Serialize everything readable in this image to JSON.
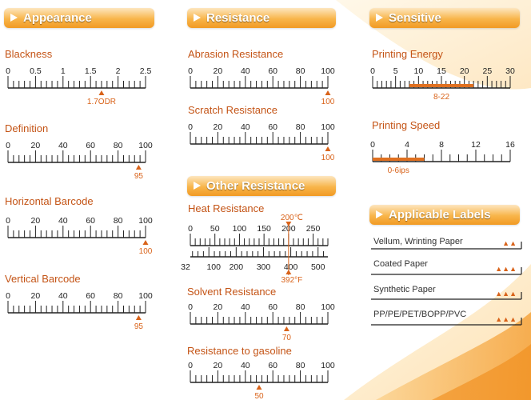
{
  "colors": {
    "accent": "#d9631a",
    "header": "#f5a733",
    "bar": "#e07020"
  },
  "sections": {
    "appearance": {
      "title": "Appearance"
    },
    "resistance": {
      "title": "Resistance"
    },
    "sensitive": {
      "title": "Sensitive"
    },
    "other": {
      "title": "Other Resistance"
    },
    "labels": {
      "title": "Applicable Labels"
    }
  },
  "metrics": {
    "blackness": {
      "label": "Blackness",
      "ticks": [
        "0",
        "0.5",
        "1",
        "1.5",
        "2",
        "2.5"
      ],
      "min": 0,
      "max": 2.5,
      "value": 1.7,
      "value_text": "1.7ODR"
    },
    "definition": {
      "label": "Definition",
      "ticks": [
        "0",
        "20",
        "40",
        "60",
        "80",
        "100"
      ],
      "min": 0,
      "max": 100,
      "value": 95,
      "value_text": "95"
    },
    "horizontal_barcode": {
      "label": "Horizontal Barcode",
      "ticks": [
        "0",
        "20",
        "40",
        "60",
        "80",
        "100"
      ],
      "min": 0,
      "max": 100,
      "value": 100,
      "value_text": "100"
    },
    "vertical_barcode": {
      "label": "Vertical Barcode",
      "ticks": [
        "0",
        "20",
        "40",
        "60",
        "80",
        "100"
      ],
      "min": 0,
      "max": 100,
      "value": 95,
      "value_text": "95"
    },
    "abrasion": {
      "label": "Abrasion Resistance",
      "ticks": [
        "0",
        "20",
        "40",
        "60",
        "80",
        "100"
      ],
      "min": 0,
      "max": 100,
      "value": 100,
      "value_text": "100"
    },
    "scratch": {
      "label": "Scratch Resistance",
      "ticks": [
        "0",
        "20",
        "40",
        "60",
        "80",
        "100"
      ],
      "min": 0,
      "max": 100,
      "value": 100,
      "value_text": "100"
    },
    "heat": {
      "label": "Heat Resistance",
      "top_ticks": [
        "0",
        "50",
        "100",
        "150",
        "200",
        "250"
      ],
      "bottom_ticks": [
        "32",
        "100",
        "200",
        "300",
        "400",
        "500"
      ],
      "value_c": "200℃",
      "value_f": "392°F",
      "value": 200
    },
    "solvent": {
      "label": "Solvent Resistance",
      "ticks": [
        "0",
        "20",
        "40",
        "60",
        "80",
        "100"
      ],
      "min": 0,
      "max": 100,
      "value": 70,
      "value_text": "70"
    },
    "gasoline": {
      "label": "Resistance to gasoline",
      "ticks": [
        "0",
        "20",
        "40",
        "60",
        "80",
        "100"
      ],
      "min": 0,
      "max": 100,
      "value": 50,
      "value_text": "50"
    },
    "printing_energy": {
      "label": "Printing Energy",
      "ticks": [
        "0",
        "5",
        "10",
        "15",
        "20",
        "25",
        "30"
      ],
      "min": 0,
      "max": 30,
      "range": [
        8,
        22
      ],
      "value_text": "8-22"
    },
    "printing_speed": {
      "label": "Printing Speed",
      "ticks": [
        "0",
        "4",
        "8",
        "12",
        "16"
      ],
      "min": 0,
      "max": 16,
      "range": [
        0,
        6
      ],
      "value_text": "0-6ips"
    }
  },
  "applicable_labels": [
    {
      "name": "Vellum, Wrinting Paper",
      "rating": "▲▲"
    },
    {
      "name": "Coated Paper",
      "rating": "▲▲▲"
    },
    {
      "name": "Synthetic Paper",
      "rating": "▲▲▲"
    },
    {
      "name": "PP/PE/PET/BOPP/PVC",
      "rating": "▲▲▲"
    }
  ]
}
